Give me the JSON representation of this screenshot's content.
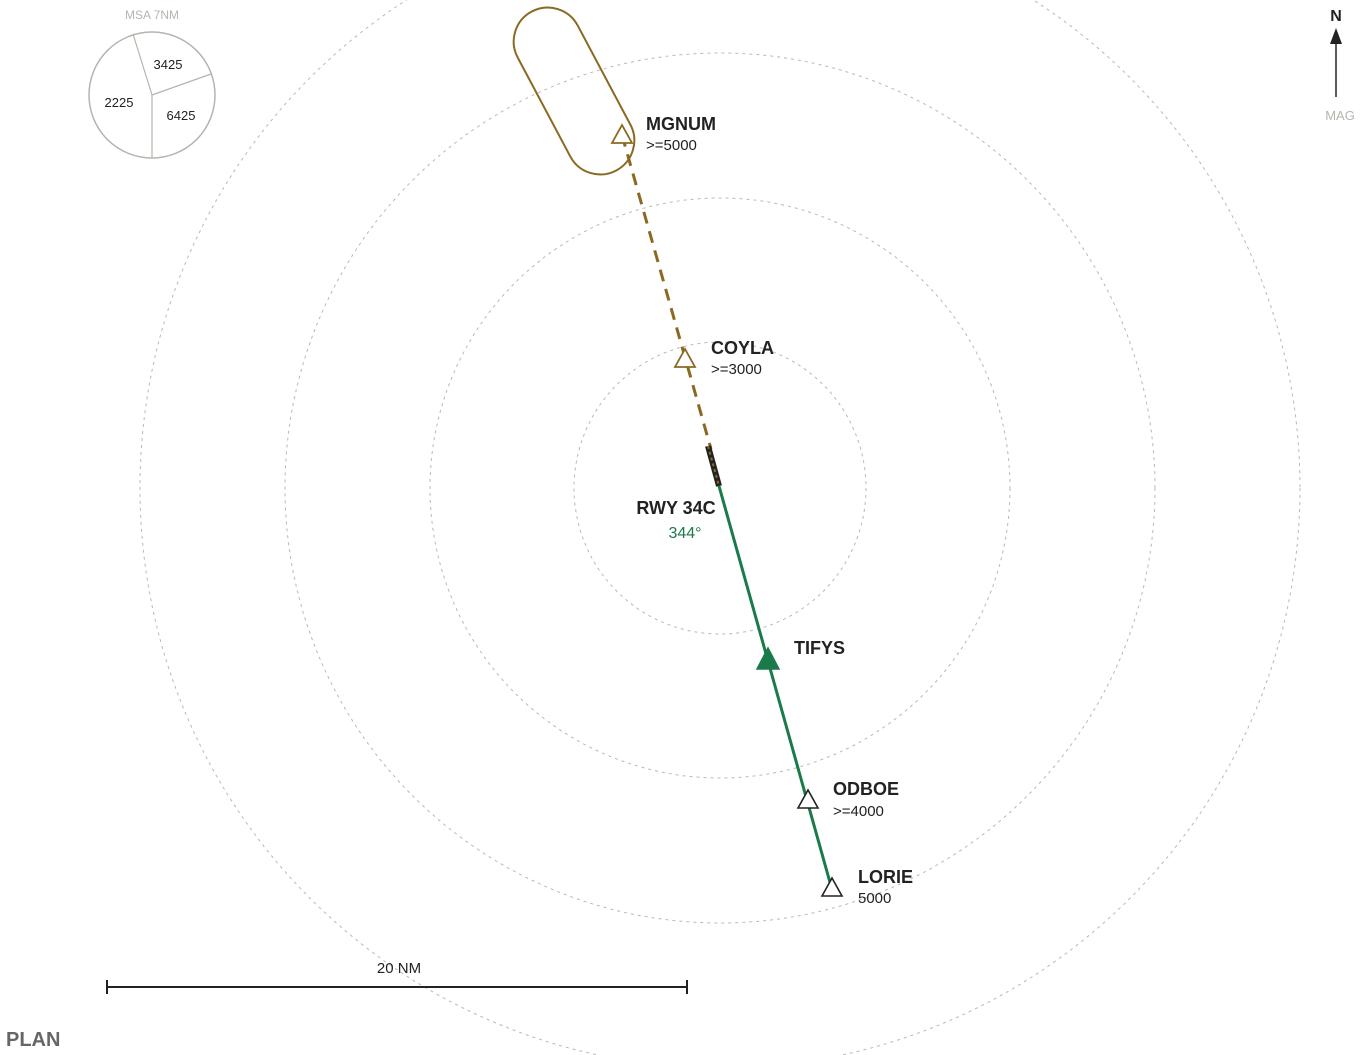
{
  "colors": {
    "missed_approach": "#8a6a22",
    "final_approach": "#1a7a4a",
    "range_ring": "#b8b8b8",
    "msa_circle": "#b5b5ad",
    "text": "#222222"
  },
  "msa": {
    "label": "MSA 7NM",
    "sectors": [
      "3425",
      "2225",
      "6425"
    ]
  },
  "north": {
    "letter": "N",
    "label": "MAG",
    "icon": "north-arrow-icon"
  },
  "runway": {
    "label": "RWY 34C",
    "course": "344°"
  },
  "waypoints": {
    "mgnum": {
      "name": "MGNUM",
      "alt": ">=5000",
      "icon": "waypoint-triangle-icon"
    },
    "coyla": {
      "name": "COYLA",
      "alt": ">=3000",
      "icon": "waypoint-triangle-icon"
    },
    "tifys": {
      "name": "TIFYS",
      "icon": "final-approach-fix-icon"
    },
    "odboe": {
      "name": "ODBOE",
      "alt": ">=4000",
      "icon": "waypoint-triangle-icon"
    },
    "lorie": {
      "name": "LORIE",
      "alt": "5000",
      "icon": "waypoint-triangle-icon"
    }
  },
  "holding": {
    "icon": "holding-pattern-icon"
  },
  "scale": {
    "label": "20 NM"
  },
  "view_label": "PLAN"
}
